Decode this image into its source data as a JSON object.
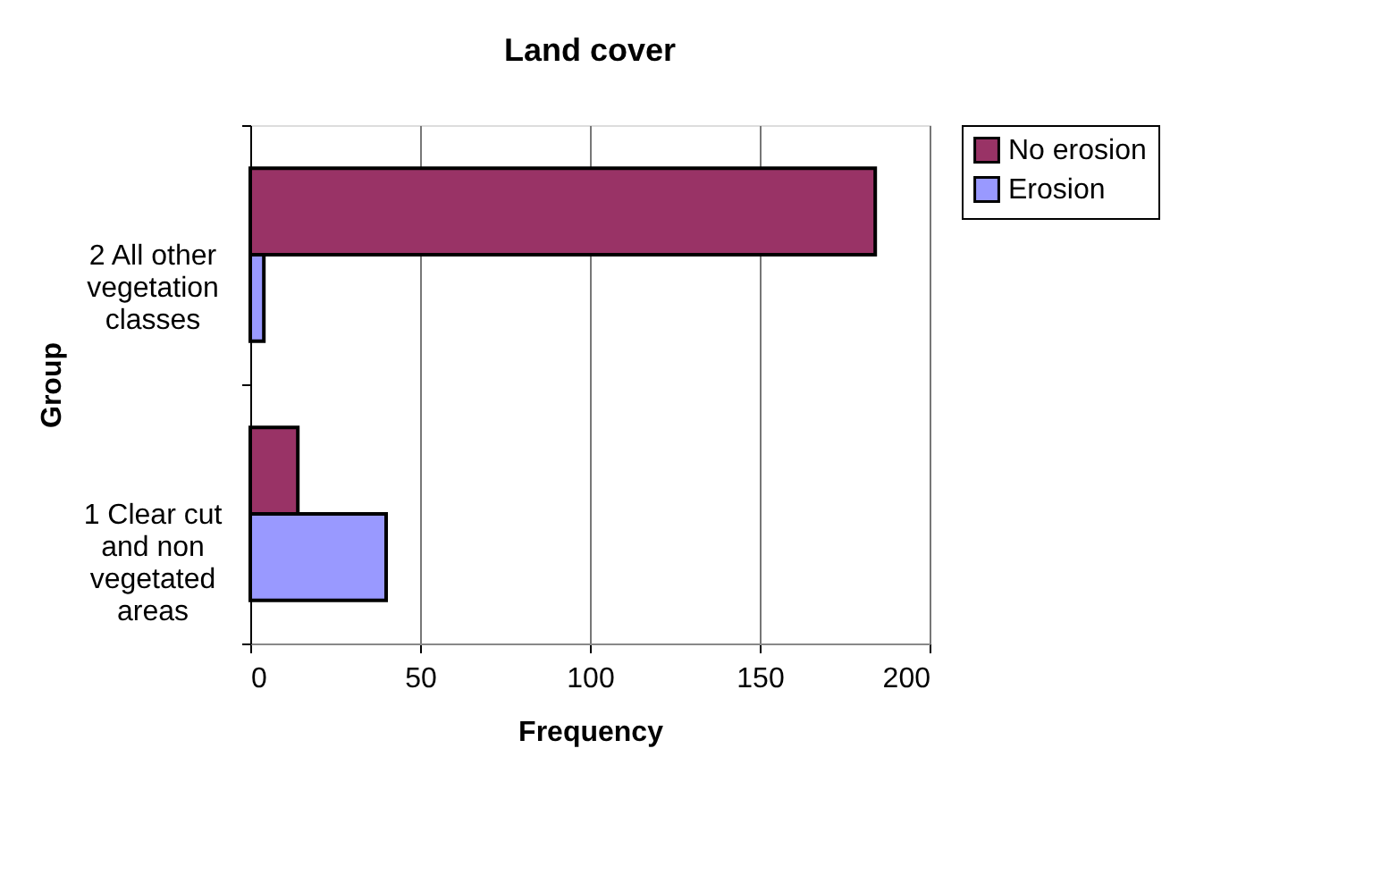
{
  "chart_data": {
    "type": "bar",
    "orientation": "horizontal",
    "title": "Land cover",
    "xlabel": "Frequency",
    "ylabel": "Group",
    "categories": [
      "2 All other vegetation classes",
      "1 Clear cut and non vegetated areas"
    ],
    "series": [
      {
        "name": "No erosion",
        "color": "#993366",
        "values": [
          184,
          14
        ]
      },
      {
        "name": "Erosion",
        "color": "#9999ff",
        "values": [
          4,
          40
        ]
      }
    ],
    "xlim": [
      0,
      200
    ],
    "xticks": [
      0,
      50,
      100,
      150,
      200
    ],
    "grid": "x",
    "legend": "right"
  }
}
